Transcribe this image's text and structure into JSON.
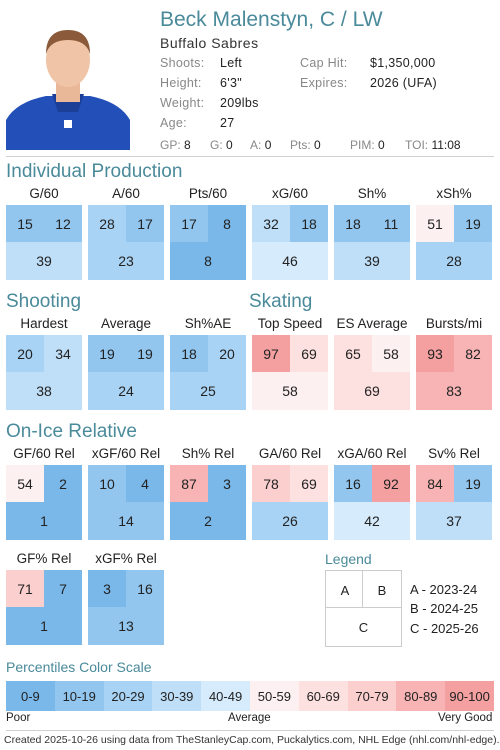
{
  "player": {
    "name": "Beck Malenstyn, C / LW",
    "team": "Buffalo Sabres",
    "bio_left": [
      {
        "label": "Shoots:",
        "value": "Left"
      },
      {
        "label": "Height:",
        "value": "6'3\""
      },
      {
        "label": "Weight:",
        "value": "209lbs"
      },
      {
        "label": "Age:",
        "value": "27"
      }
    ],
    "bio_right": [
      {
        "label": "Cap Hit:",
        "value": "$1,350,000"
      },
      {
        "label": "Expires:",
        "value": "2026 (UFA)"
      }
    ],
    "stats": [
      {
        "label": "GP:",
        "value": "8"
      },
      {
        "label": "G:",
        "value": "0"
      },
      {
        "label": "A:",
        "value": "0"
      },
      {
        "label": "Pts:",
        "value": "0"
      },
      {
        "label": "PIM:",
        "value": "0"
      },
      {
        "label": "TOI:",
        "value": "11:08"
      }
    ]
  },
  "sections": {
    "individual": "Individual Production",
    "shooting": "Shooting",
    "skating": "Skating",
    "onice": "On-Ice Relative"
  },
  "metrics": {
    "individual": [
      {
        "name": "G/60",
        "a": 15,
        "b": 12,
        "c": 39
      },
      {
        "name": "A/60",
        "a": 28,
        "b": 17,
        "c": 23
      },
      {
        "name": "Pts/60",
        "a": 17,
        "b": 8,
        "c": 8
      },
      {
        "name": "xG/60",
        "a": 32,
        "b": 18,
        "c": 46
      },
      {
        "name": "Sh%",
        "a": 18,
        "b": 11,
        "c": 39
      },
      {
        "name": "xSh%",
        "a": 51,
        "b": 19,
        "c": 28
      }
    ],
    "shooting": [
      {
        "name": "Hardest",
        "a": 20,
        "b": 34,
        "c": 38
      },
      {
        "name": "Average",
        "a": 19,
        "b": 19,
        "c": 24
      },
      {
        "name": "Sh%AE",
        "a": 18,
        "b": 20,
        "c": 25
      }
    ],
    "skating": [
      {
        "name": "Top Speed",
        "a": 97,
        "b": 69,
        "c": 58
      },
      {
        "name": "ES Average",
        "a": 65,
        "b": 58,
        "c": 69
      },
      {
        "name": "Bursts/mi",
        "a": 93,
        "b": 82,
        "c": 83
      }
    ],
    "onice": [
      {
        "name": "GF/60 Rel",
        "a": 54,
        "b": 2,
        "c": 1
      },
      {
        "name": "xGF/60 Rel",
        "a": 10,
        "b": 4,
        "c": 14
      },
      {
        "name": "Sh% Rel",
        "a": 87,
        "b": 3,
        "c": 2
      },
      {
        "name": "GA/60 Rel",
        "a": 78,
        "b": 69,
        "c": 26
      },
      {
        "name": "xGA/60 Rel",
        "a": 16,
        "b": 92,
        "c": 42
      },
      {
        "name": "Sv% Rel",
        "a": 84,
        "b": 19,
        "c": 37
      }
    ],
    "onice2": [
      {
        "name": "GF% Rel",
        "a": 71,
        "b": 7,
        "c": 1
      },
      {
        "name": "xGF% Rel",
        "a": 3,
        "b": 16,
        "c": 13
      }
    ]
  },
  "legend": {
    "title": "Legend",
    "a": "A",
    "b": "B",
    "c": "C",
    "items": [
      "A - 2023-24",
      "B - 2024-25",
      "C - 2025-26"
    ]
  },
  "scale": {
    "title": "Percentiles Color Scale",
    "buckets": [
      "0-9",
      "10-19",
      "20-29",
      "30-39",
      "40-49",
      "50-59",
      "60-69",
      "70-79",
      "80-89",
      "90-100"
    ],
    "colors": [
      "#7ab8ea",
      "#92c6ef",
      "#a9d3f4",
      "#bfdff8",
      "#d6ebfb",
      "#fdf0f0",
      "#fde0e0",
      "#fccfcf",
      "#f8b4b4",
      "#f4a0a0"
    ],
    "poor": "Poor",
    "average": "Average",
    "good": "Very Good"
  },
  "footer": "Created 2025-10-26 using data from TheStanleyCap.com, Puckalytics.com, NHL Edge (nhl.com/nhl-edge)."
}
